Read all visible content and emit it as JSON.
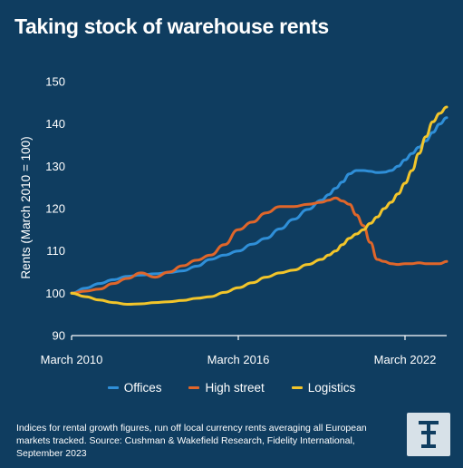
{
  "title": "Taking stock of warehouse rents",
  "footnote": "Indices for rental growth figures, run off local currency rents averaging all European markets tracked. Source: Cushman & Wakefield Research, Fidelity International, September 2023",
  "logo": {
    "icon": "fidelity-logo",
    "bg": "#d7e1e8",
    "fg": "#0f3d60"
  },
  "colors": {
    "background": "#0f3d60",
    "offices": "#2f8fd8",
    "high_street": "#e0662a",
    "logistics": "#f2c52a"
  },
  "chart_data": {
    "type": "line",
    "title": "Taking stock of warehouse rents",
    "xlabel": "",
    "ylabel": "Rents (March 2010 = 100)",
    "ylim": [
      90,
      150
    ],
    "yticks": [
      "90",
      "100",
      "110",
      "120",
      "130",
      "140",
      "150"
    ],
    "xlim": [
      2010.0,
      2023.5
    ],
    "xticks": [
      {
        "label": "March 2010",
        "value": 2010.0
      },
      {
        "label": "March 2016",
        "value": 2016.0
      },
      {
        "label": "March 2022",
        "value": 2022.0
      }
    ],
    "grid": false,
    "legend": "bottom",
    "x": [
      2010.0,
      2010.5,
      2011.0,
      2011.5,
      2012.0,
      2012.5,
      2013.0,
      2013.5,
      2014.0,
      2014.5,
      2015.0,
      2015.5,
      2016.0,
      2016.5,
      2017.0,
      2017.5,
      2018.0,
      2018.5,
      2019.0,
      2019.25,
      2019.5,
      2019.75,
      2020.0,
      2020.25,
      2020.5,
      2020.75,
      2021.0,
      2021.25,
      2021.5,
      2021.75,
      2022.0,
      2022.25,
      2022.5,
      2022.75,
      2023.0,
      2023.25,
      2023.5
    ],
    "series": [
      {
        "name": "Offices",
        "color": "#2f8fd8",
        "values": [
          100,
          101.2,
          102.3,
          103.2,
          104.0,
          104.3,
          104.6,
          104.9,
          105.3,
          106.4,
          108.0,
          109.0,
          110.0,
          111.6,
          113.0,
          115.2,
          117.5,
          119.8,
          122.0,
          123.3,
          124.8,
          126.3,
          128.2,
          129.0,
          129.0,
          128.8,
          128.5,
          128.6,
          129.0,
          130.0,
          131.5,
          133.0,
          134.5,
          136.0,
          138.0,
          140.0,
          141.5
        ]
      },
      {
        "name": "High street",
        "color": "#e0662a",
        "values": [
          100,
          100.5,
          101.0,
          102.3,
          103.5,
          104.8,
          103.8,
          105.0,
          106.5,
          107.8,
          109.0,
          111.5,
          115.0,
          116.8,
          119.0,
          120.5,
          120.5,
          121.0,
          121.5,
          122.0,
          122.5,
          121.8,
          121.0,
          118.5,
          116.0,
          112.0,
          108.0,
          107.5,
          107.0,
          106.8,
          107.0,
          107.0,
          107.2,
          107.0,
          107.0,
          107.0,
          107.5
        ]
      },
      {
        "name": "Logistics",
        "color": "#f2c52a",
        "values": [
          100,
          99.2,
          98.4,
          97.8,
          97.4,
          97.5,
          97.8,
          98.0,
          98.3,
          98.8,
          99.2,
          100.2,
          101.3,
          102.5,
          103.8,
          104.8,
          105.5,
          106.8,
          108.0,
          109.0,
          110.0,
          111.5,
          113.0,
          114.0,
          115.0,
          116.5,
          118.0,
          120.0,
          121.5,
          123.5,
          126.0,
          129.0,
          133.0,
          137.0,
          140.5,
          142.5,
          144.0
        ]
      }
    ]
  }
}
